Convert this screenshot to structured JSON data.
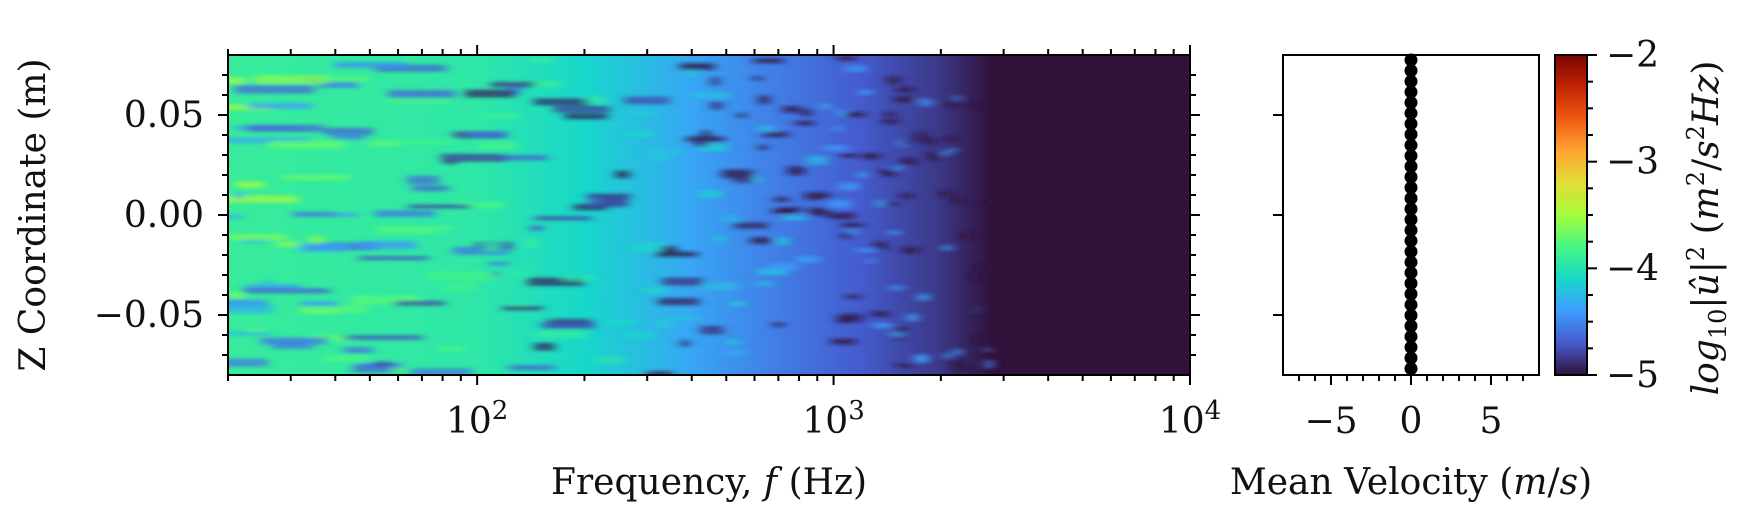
{
  "chart_data": [
    {
      "type": "heatmap",
      "xlabel": "Frequency, f (Hz)",
      "ylabel": "Z Coordinate (m)",
      "x_scale": "log",
      "xlim": [
        20,
        10000
      ],
      "ylim": [
        -0.08,
        0.08
      ],
      "x_ticks": [
        {
          "value": 100,
          "label": "10",
          "exp": "2"
        },
        {
          "value": 1000,
          "label": "10",
          "exp": "3"
        },
        {
          "value": 10000,
          "label": "10",
          "exp": "4"
        }
      ],
      "y_ticks": [
        {
          "value": 0.05,
          "label": "0.05"
        },
        {
          "value": 0.0,
          "label": "0.00"
        },
        {
          "value": -0.05,
          "label": "−0.05"
        }
      ],
      "description_colormap": "turbo",
      "value_bands": [
        {
          "f": 20,
          "value": -3.9
        },
        {
          "f": 100,
          "value": -3.95
        },
        {
          "f": 200,
          "value": -4.1
        },
        {
          "f": 400,
          "value": -4.35
        },
        {
          "f": 700,
          "value": -4.55
        },
        {
          "f": 1200,
          "value": -4.7
        },
        {
          "f": 2000,
          "value": -4.85
        },
        {
          "f": 2800,
          "value": -5.0
        },
        {
          "f": 10000,
          "value": -5.0
        }
      ]
    },
    {
      "type": "scatter",
      "xlabel": "Mean Velocity (m/s)",
      "xlim": [
        -8,
        8
      ],
      "ylim": [
        -0.08,
        0.08
      ],
      "x_ticks": [
        {
          "value": -5,
          "label": "−5"
        },
        {
          "value": 0,
          "label": "0"
        },
        {
          "value": 5,
          "label": "5"
        }
      ],
      "x": [
        0,
        0,
        0,
        0,
        0,
        0,
        0,
        0,
        0,
        0,
        0,
        0,
        0,
        0,
        0,
        0,
        0,
        0,
        0,
        0,
        0,
        0,
        0,
        0,
        0,
        0,
        0,
        0,
        0,
        0
      ],
      "y": [
        0.0775,
        0.0722,
        0.0668,
        0.0615,
        0.0562,
        0.0509,
        0.0456,
        0.0403,
        0.0349,
        0.0296,
        0.0243,
        0.019,
        0.0137,
        0.0083,
        0.003,
        -0.0023,
        -0.0076,
        -0.0129,
        -0.0183,
        -0.0236,
        -0.0289,
        -0.0342,
        -0.0395,
        -0.0449,
        -0.0502,
        -0.0555,
        -0.0608,
        -0.0661,
        -0.0715,
        -0.0768
      ]
    },
    {
      "type": "colorbar",
      "label": "log10|û|² (m²/s²Hz)",
      "range": [
        -5,
        -2
      ],
      "ticks": [
        {
          "value": -2,
          "label": "−2"
        },
        {
          "value": -3,
          "label": "−3"
        },
        {
          "value": -4,
          "label": "−4"
        },
        {
          "value": -5,
          "label": "−5"
        }
      ]
    }
  ]
}
